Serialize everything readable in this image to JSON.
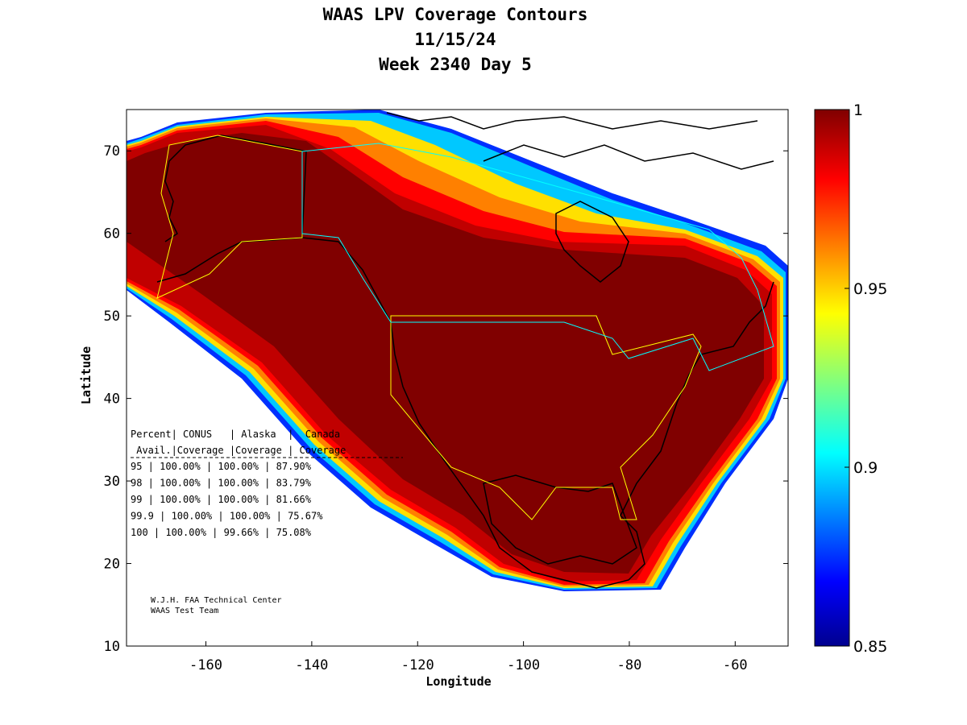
{
  "title": {
    "line1": "WAAS LPV Coverage Contours",
    "line2": "11/15/24",
    "line3": "Week 2340 Day 5"
  },
  "axes": {
    "xlabel": "Longitude",
    "ylabel": "Latitude",
    "xlim": [
      -175,
      -50
    ],
    "ylim": [
      10,
      75
    ],
    "xticks": [
      "-160",
      "-140",
      "-120",
      "-100",
      "-80",
      "-60"
    ],
    "yticks": [
      "10",
      "20",
      "30",
      "40",
      "50",
      "60",
      "70"
    ]
  },
  "colorbar": {
    "min": 0.85,
    "max": 1,
    "ticks": [
      "1",
      "0.95",
      "0.9",
      "0.85"
    ]
  },
  "table": {
    "header1": "Percent| CONUS   | Alaska  |  Canada",
    "header2": " Avail.|Coverage |Coverage | Coverage",
    "rows": [
      "  95   | 100.00%  | 100.00% | 87.90%",
      "  98   | 100.00%  | 100.00% | 83.79%",
      "  99   | 100.00%  | 100.00% | 81.66%",
      "99.9   | 100.00%  | 100.00% | 75.67%",
      " 100   | 100.00%  | 99.66% | 75.08%"
    ]
  },
  "credit": {
    "line1": "W.J.H. FAA Technical Center",
    "line2": "WAAS Test Team"
  },
  "colors": {
    "coverage_full": "#800000",
    "coverage_edge": "#ff0000",
    "conus_boundary": "#ffff00",
    "canada_boundary": "#00ffff"
  }
}
